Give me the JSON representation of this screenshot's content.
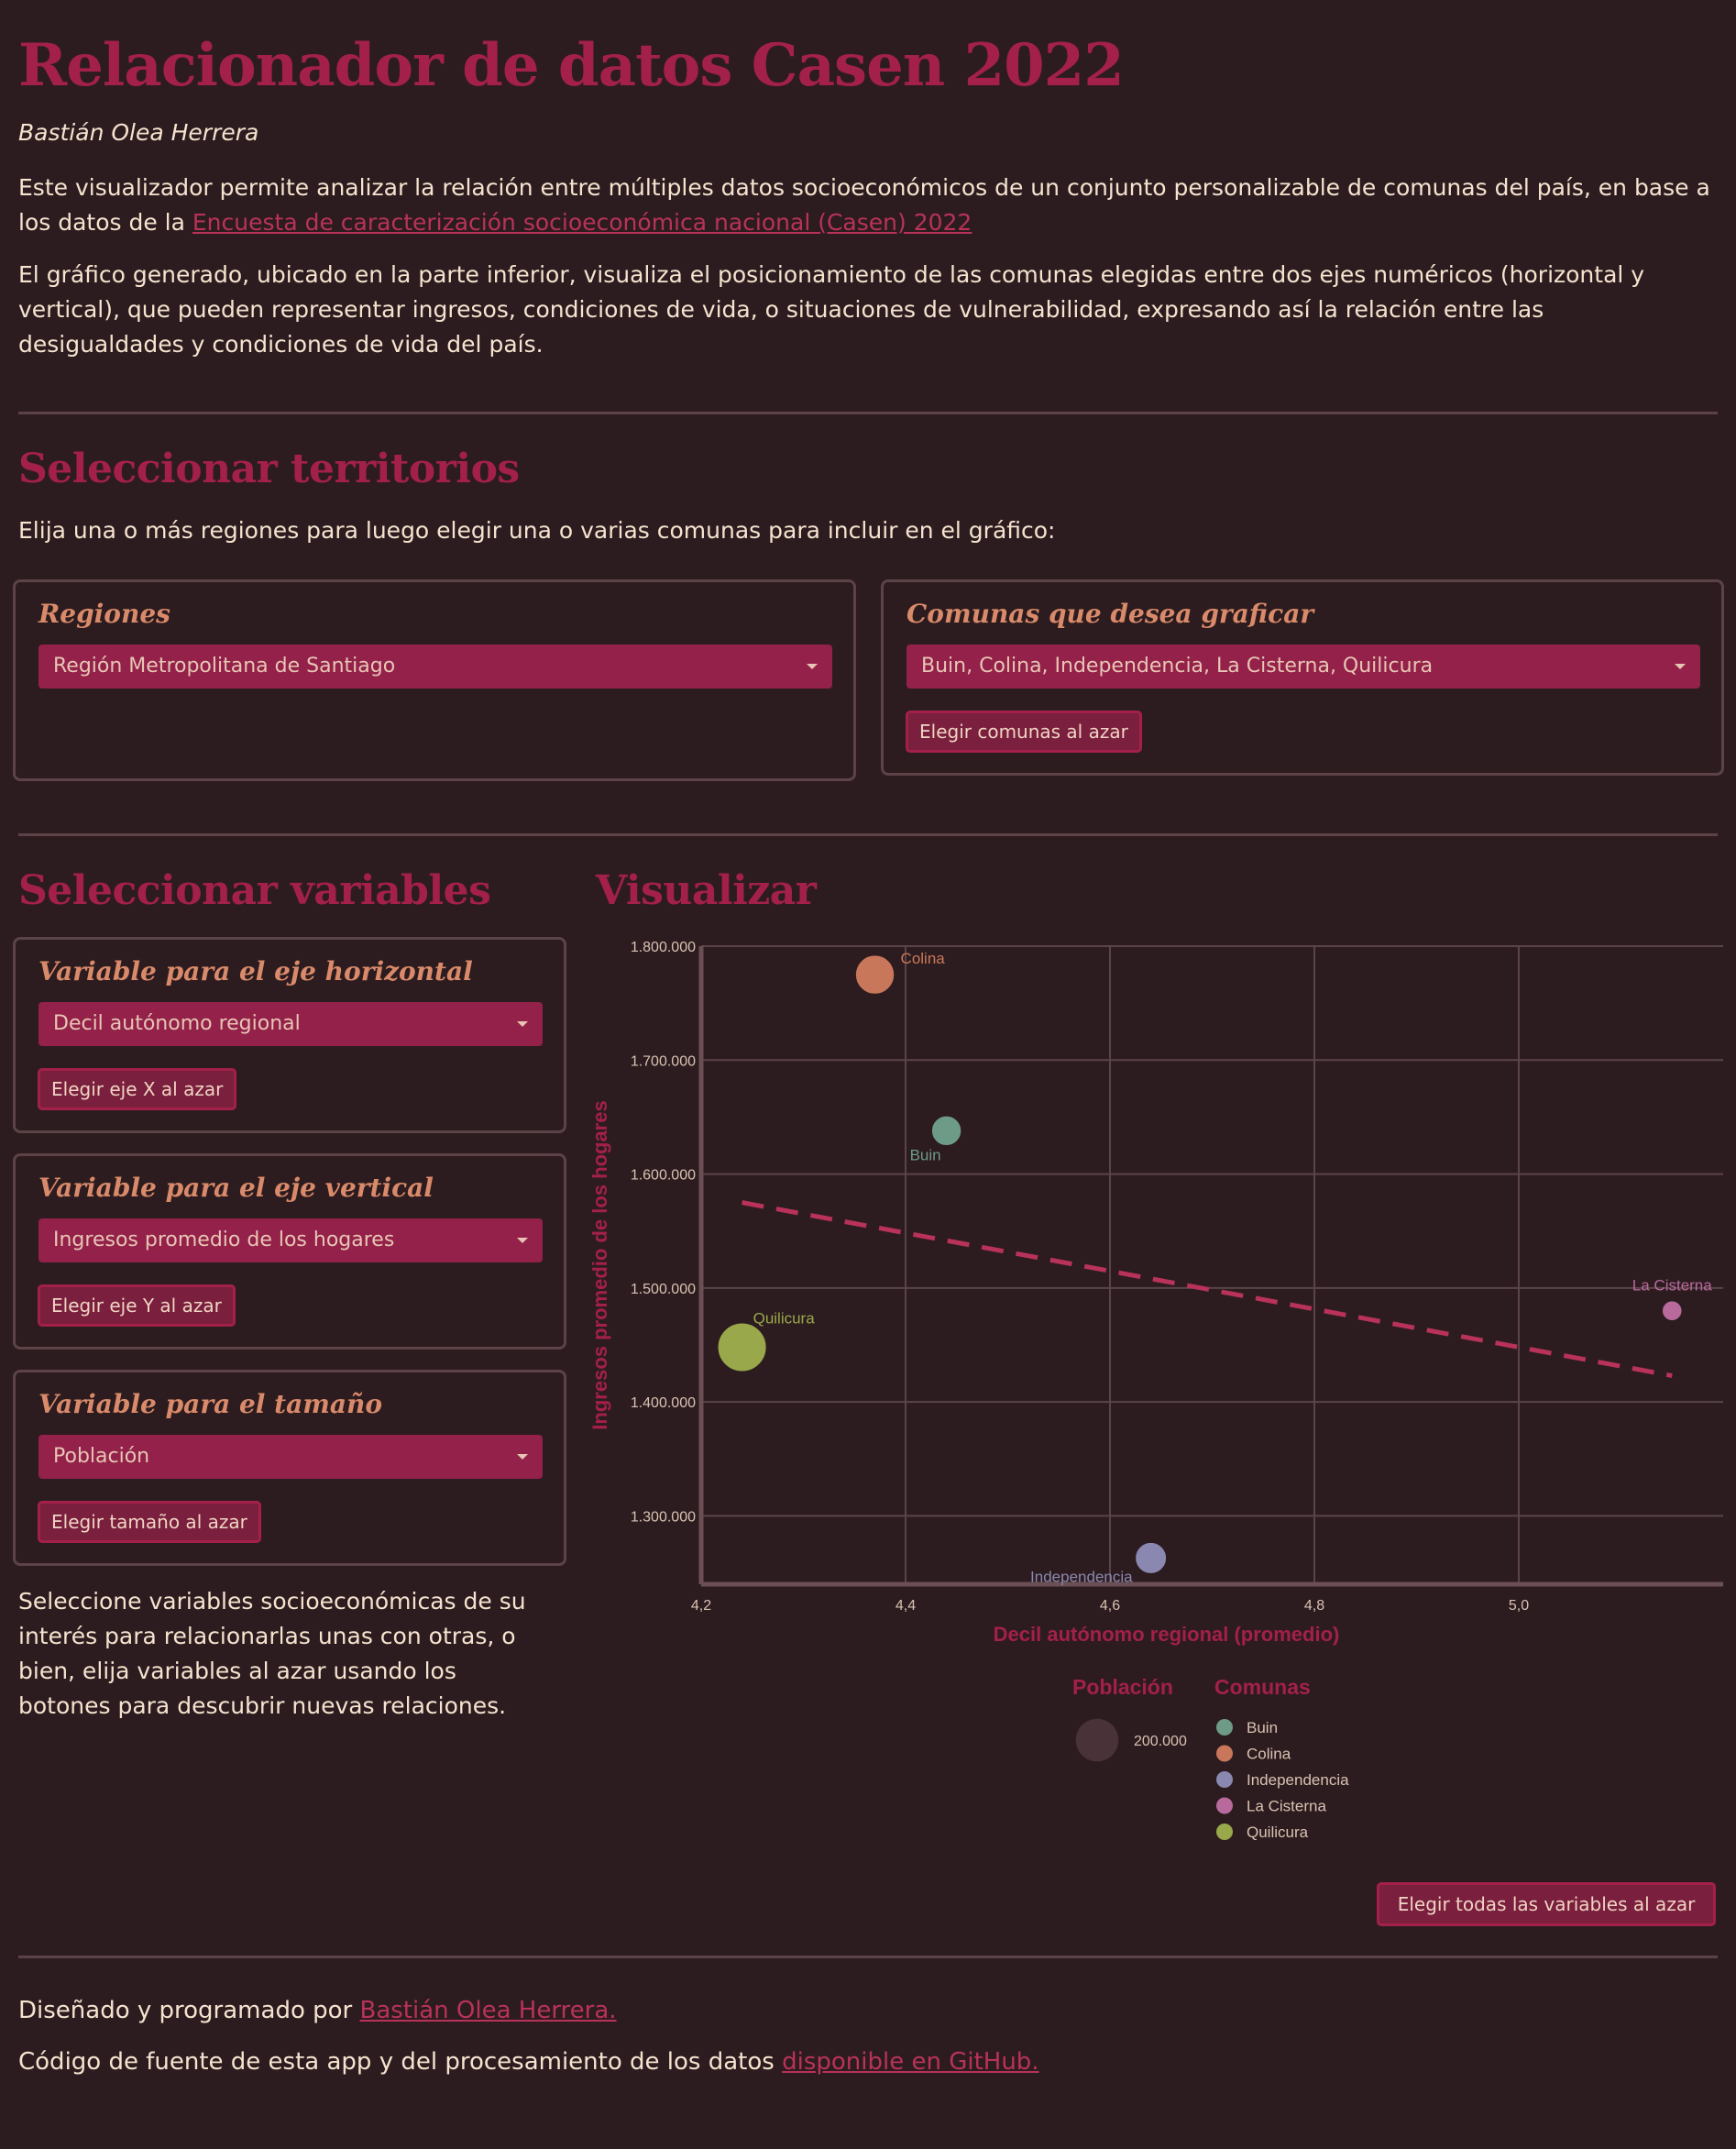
{
  "header": {
    "title": "Relacionador de datos Casen 2022",
    "author": "Bastián Olea Herrera",
    "intro_before_link": "Este visualizador permite analizar la relación entre múltiples datos socioeconómicos de un conjunto personalizable de comunas del país, en base a los datos de la ",
    "intro_link": "Encuesta de caracterización socioeconómica nacional (Casen) 2022",
    "intro2": "El gráfico generado, ubicado en la parte inferior, visualiza el posicionamiento de las comunas elegidas entre dos ejes numéricos (horizontal y vertical), que pueden representar ingresos, condiciones de vida, o situaciones de vulnerabilidad, expresando así la relación entre las desigualdades y condiciones de vida del país."
  },
  "territorios": {
    "title": "Seleccionar territorios",
    "description": "Elija una o más regiones para luego elegir una o varias comunas para incluir en el gráfico:",
    "regiones_label": "Regiones",
    "regiones_value": "Región Metropolitana de Santiago",
    "comunas_label": "Comunas que desea graficar",
    "comunas_value": "Buin, Colina, Independencia, La Cisterna, Quilicura",
    "comunas_random_button": "Elegir comunas al azar"
  },
  "variables": {
    "title": "Seleccionar variables",
    "x_label": "Variable para el eje horizontal",
    "x_value": "Decil autónomo regional",
    "x_button": "Elegir eje X al azar",
    "y_label": "Variable para el eje vertical",
    "y_value": "Ingresos promedio de los hogares",
    "y_button": "Elegir eje Y al azar",
    "size_label": "Variable para el tamaño",
    "size_value": "Población",
    "size_button": "Elegir tamaño al azar",
    "help_text": "Seleccione variables socioeconómicas de su interés para relacionarlas unas con otras, o bien, elija variables al azar usando los botones para descubrir nuevas relaciones."
  },
  "visualizar": {
    "title": "Visualizar",
    "all_random_button": "Elegir todas las variables al azar"
  },
  "chart_data": {
    "type": "scatter",
    "xlabel": "Decil autónomo regional (promedio)",
    "ylabel": "Ingresos promedio de los hogares",
    "xlim": [
      4.2,
      5.2
    ],
    "ylim": [
      1240000,
      1800000
    ],
    "x_ticks": [
      4.2,
      4.4,
      4.6,
      4.8,
      5.0
    ],
    "x_tick_labels": [
      "4,2",
      "4,4",
      "4,6",
      "4,8",
      "5,0"
    ],
    "y_ticks": [
      1300000,
      1400000,
      1500000,
      1600000,
      1700000,
      1800000
    ],
    "y_tick_labels": [
      "1.300.000",
      "1.400.000",
      "1.500.000",
      "1.600.000",
      "1.700.000",
      "1.800.000"
    ],
    "grid": true,
    "points": [
      {
        "name": "Buin",
        "x": 4.44,
        "y": 1638000,
        "size": 100000,
        "color": "#6e9a88"
      },
      {
        "name": "Colina",
        "x": 4.37,
        "y": 1775000,
        "size": 170000,
        "color": "#c9775a"
      },
      {
        "name": "Independencia",
        "x": 4.64,
        "y": 1263000,
        "size": 110000,
        "color": "#8a87b0"
      },
      {
        "name": "La Cisterna",
        "x": 5.15,
        "y": 1480000,
        "size": 45000,
        "color": "#b86a9c"
      },
      {
        "name": "Quilicura",
        "x": 4.24,
        "y": 1448000,
        "size": 265000,
        "color": "#98a84a"
      }
    ],
    "trend_line": {
      "x": [
        4.24,
        5.15
      ],
      "y": [
        1575000,
        1423000
      ],
      "color": "#b8325a"
    },
    "size_legend": {
      "title": "Población",
      "value": 200000,
      "label": "200.000"
    },
    "color_legend_title": "Comunas"
  },
  "footer": {
    "line1_text": "Diseñado y programado por ",
    "line1_link": "Bastián Olea Herrera.",
    "line2_text": "Código de fuente de esta app y del procesamiento de los datos ",
    "line2_link": "disponible en GitHub."
  }
}
